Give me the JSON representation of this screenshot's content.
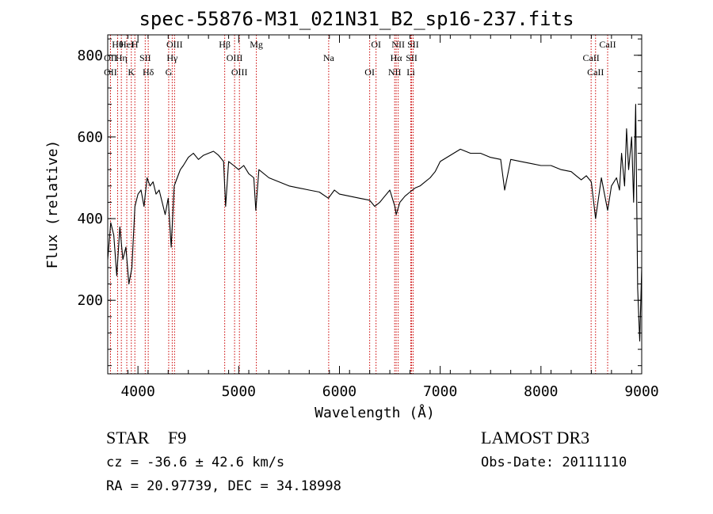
{
  "title": "spec-55876-M31_021N31_B2_sp16-237.fits",
  "footer": {
    "class": "STAR    F9",
    "survey": "LAMOST DR3",
    "cz": "cz = -36.6 ± 42.6 km/s",
    "obs_date": "Obs-Date: 20111110",
    "radec": "RA =  20.97739, DEC =  34.18998"
  },
  "colors": {
    "line": "#cc0000",
    "spectrum": "#000000",
    "axes": "#000000"
  },
  "chart_data": {
    "type": "line",
    "title": "spec-55876-M31_021N31_B2_sp16-237.fits",
    "xlabel": "Wavelength (Å)",
    "ylabel": "Flux (relative)",
    "xlim": [
      3700,
      9000
    ],
    "ylim": [
      20,
      850
    ],
    "xticks": [
      4000,
      5000,
      6000,
      7000,
      8000,
      9000
    ],
    "yticks": [
      200,
      400,
      600,
      800
    ],
    "grid": false,
    "series": [
      {
        "x": [
          3700,
          3730,
          3760,
          3790,
          3820,
          3850,
          3880,
          3910,
          3940,
          3970,
          4000,
          4030,
          4060,
          4090,
          4120,
          4150,
          4180,
          4210,
          4240,
          4270,
          4300,
          4330,
          4360,
          4390,
          4420,
          4450,
          4500,
          4550,
          4600,
          4650,
          4700,
          4750,
          4800,
          4850,
          4870,
          4900,
          4950,
          5000,
          5050,
          5100,
          5150,
          5170,
          5200,
          5300,
          5400,
          5500,
          5600,
          5700,
          5800,
          5890,
          5950,
          6000,
          6100,
          6200,
          6300,
          6350,
          6400,
          6450,
          6500,
          6550,
          6563,
          6600,
          6650,
          6700,
          6750,
          6800,
          6850,
          6900,
          6950,
          7000,
          7100,
          7200,
          7300,
          7400,
          7500,
          7600,
          7640,
          7700,
          7800,
          7900,
          8000,
          8100,
          8200,
          8300,
          8350,
          8400,
          8450,
          8500,
          8542,
          8600,
          8662,
          8700,
          8750,
          8780,
          8800,
          8830,
          8850,
          8870,
          8900,
          8920,
          8940,
          8960,
          8980,
          9000
        ],
        "y": [
          300,
          390,
          360,
          260,
          380,
          300,
          330,
          240,
          280,
          430,
          460,
          470,
          430,
          500,
          480,
          490,
          460,
          470,
          440,
          410,
          450,
          330,
          480,
          500,
          520,
          530,
          550,
          560,
          545,
          555,
          560,
          565,
          555,
          540,
          430,
          540,
          530,
          520,
          530,
          510,
          500,
          420,
          520,
          500,
          490,
          480,
          475,
          470,
          465,
          450,
          470,
          460,
          455,
          450,
          445,
          430,
          440,
          455,
          470,
          430,
          410,
          440,
          455,
          465,
          475,
          480,
          490,
          500,
          515,
          540,
          555,
          570,
          560,
          560,
          550,
          545,
          470,
          545,
          540,
          535,
          530,
          530,
          520,
          515,
          505,
          495,
          505,
          490,
          400,
          500,
          420,
          480,
          500,
          470,
          560,
          480,
          620,
          520,
          600,
          440,
          680,
          230,
          100,
          280
        ]
      }
    ],
    "lines": [
      {
        "name": "Hθ",
        "wave": 3798
      },
      {
        "name": "OII",
        "wave": 3727
      },
      {
        "name": "OII",
        "wave": 3727
      },
      {
        "name": "HeI",
        "wave": 3889
      },
      {
        "name": "Hη",
        "wave": 3835
      },
      {
        "name": "K",
        "wave": 3934
      },
      {
        "name": "H",
        "wave": 3969
      },
      {
        "name": "SII",
        "wave": 4072
      },
      {
        "name": "Hδ",
        "wave": 4102
      },
      {
        "name": "OIII",
        "wave": 4363
      },
      {
        "name": "Hγ",
        "wave": 4340
      },
      {
        "name": "G",
        "wave": 4305
      },
      {
        "name": "Hβ",
        "wave": 4861
      },
      {
        "name": "OIII",
        "wave": 4959
      },
      {
        "name": "OIII",
        "wave": 5007
      },
      {
        "name": "Mg",
        "wave": 5175
      },
      {
        "name": "Na",
        "wave": 5893
      },
      {
        "name": "OI",
        "wave": 6300
      },
      {
        "name": "OI",
        "wave": 6363
      },
      {
        "name": "Hα",
        "wave": 6563
      },
      {
        "name": "NII",
        "wave": 6548
      },
      {
        "name": "NII",
        "wave": 6583
      },
      {
        "name": "SII",
        "wave": 6716
      },
      {
        "name": "Li",
        "wave": 6708
      },
      {
        "name": "SII",
        "wave": 6731
      },
      {
        "name": "CaII",
        "wave": 8498
      },
      {
        "name": "CaII",
        "wave": 8542
      },
      {
        "name": "CaII",
        "wave": 8662
      }
    ]
  }
}
